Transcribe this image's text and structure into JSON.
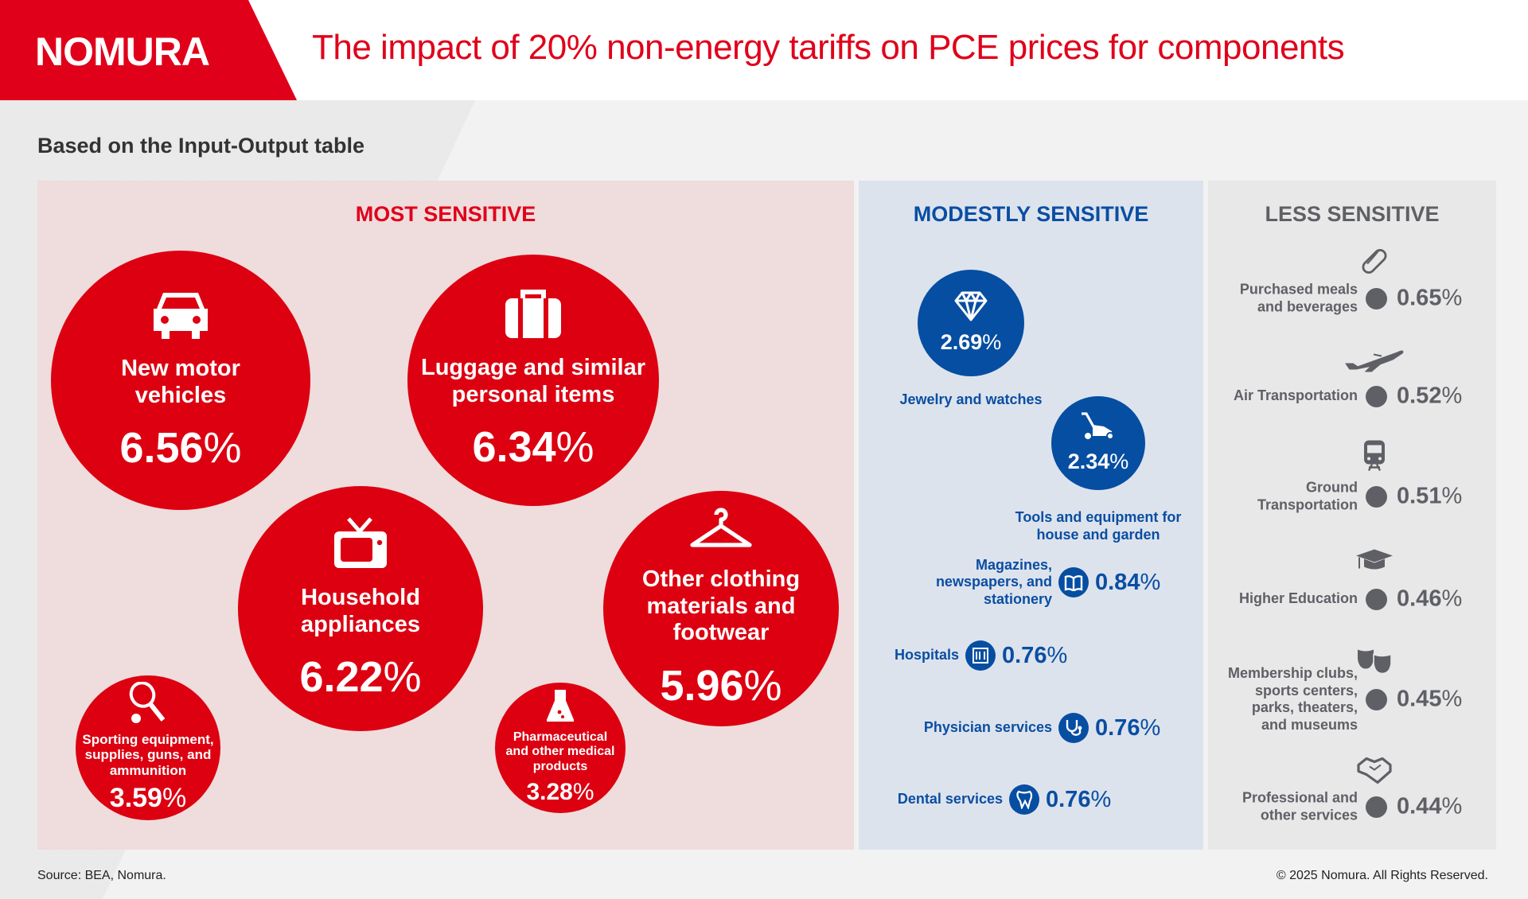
{
  "header": {
    "logo": "NOMURA",
    "title": "The impact of 20% non-energy tariffs on PCE prices for components"
  },
  "subtitle": "Based on the Input-Output table",
  "colors": {
    "red": "#e0001a",
    "blue": "#0a4ea2",
    "gray": "#5f6066"
  },
  "most": {
    "title": "MOST SENSITIVE",
    "items": [
      {
        "label": "New motor vehicles",
        "value": "6.56",
        "unit": "%",
        "icon": "car-icon"
      },
      {
        "label": "Luggage and similar personal items",
        "value": "6.34",
        "unit": "%",
        "icon": "luggage-icon"
      },
      {
        "label": "Household appliances",
        "value": "6.22",
        "unit": "%",
        "icon": "tv-icon"
      },
      {
        "label": "Other clothing materials and footwear",
        "value": "5.96",
        "unit": "%",
        "icon": "hanger-icon"
      },
      {
        "label": "Sporting equipment, supplies, guns, and ammunition",
        "value": "3.59",
        "unit": "%",
        "icon": "tennis-racket-icon"
      },
      {
        "label": "Pharmaceutical and other medical products",
        "value": "3.28",
        "unit": "%",
        "icon": "flask-icon"
      }
    ]
  },
  "modest": {
    "title": "MODESTLY SENSITIVE",
    "circles": [
      {
        "label": "Jewelry and watches",
        "value": "2.69",
        "unit": "%",
        "icon": "diamond-icon"
      },
      {
        "label": "Tools and equipment for house and garden",
        "value": "2.34",
        "unit": "%",
        "icon": "lawnmower-icon"
      }
    ],
    "rows": [
      {
        "label": "Magazines, newspapers, and stationery",
        "value": "0.84",
        "unit": "%",
        "icon": "book-icon"
      },
      {
        "label": "Hospitals",
        "value": "0.76",
        "unit": "%",
        "icon": "hospital-icon"
      },
      {
        "label": "Physician services",
        "value": "0.76",
        "unit": "%",
        "icon": "stethoscope-icon"
      },
      {
        "label": "Dental services",
        "value": "0.76",
        "unit": "%",
        "icon": "tooth-icon"
      }
    ]
  },
  "less": {
    "title": "LESS SENSITIVE",
    "rows": [
      {
        "label": "Purchased meals and beverages",
        "value": "0.65",
        "unit": "%",
        "icon": "hotdog-icon"
      },
      {
        "label": "Air Transportation",
        "value": "0.52",
        "unit": "%",
        "icon": "airplane-icon"
      },
      {
        "label": "Ground Transportation",
        "value": "0.51",
        "unit": "%",
        "icon": "train-icon"
      },
      {
        "label": "Higher Education",
        "value": "0.46",
        "unit": "%",
        "icon": "graduation-cap-icon"
      },
      {
        "label": "Membership clubs, sports centers, parks, theaters, and museums",
        "value": "0.45",
        "unit": "%",
        "icon": "theater-masks-icon"
      },
      {
        "label": "Professional and other services",
        "value": "0.44",
        "unit": "%",
        "icon": "handshake-icon"
      }
    ]
  },
  "footer": {
    "source": "Source: BEA, Nomura.",
    "copyright": "© 2025 Nomura. All Rights Reserved."
  }
}
